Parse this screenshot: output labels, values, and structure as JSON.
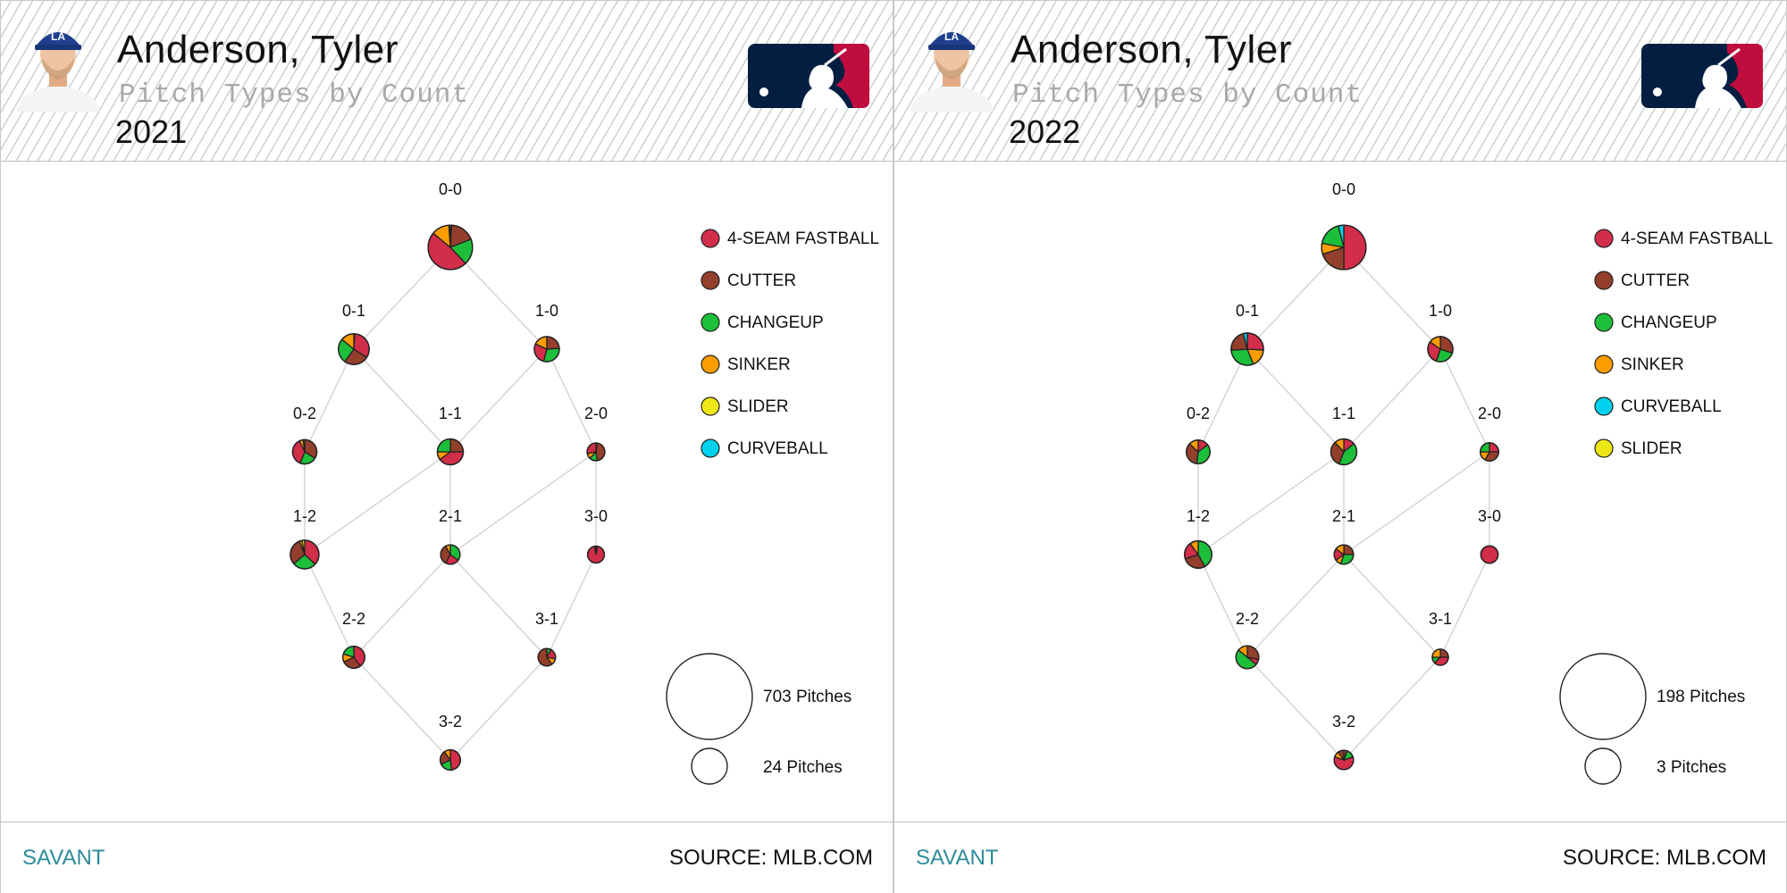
{
  "colors": {
    "4-SEAM FASTBALL": "#d22d49",
    "CUTTER": "#933f2c",
    "CHANGEUP": "#1dbe3a",
    "SINKER": "#fe9d00",
    "SLIDER": "#eee716",
    "CURVEBALL": "#00d1ed",
    "savant": "#2e8b9a",
    "mlb_navy": "#041e42",
    "mlb_red": "#bf0d3e"
  },
  "icons": {
    "avatar": "player-headshot-icon",
    "logo": "mlb-logo-icon"
  },
  "panels": [
    {
      "player_name": "Anderson, Tyler",
      "subtitle": "Pitch Types by Count",
      "year": "2021",
      "footer_left": "SAVANT",
      "footer_right": "SOURCE: MLB.COM",
      "size_legend": [
        {
          "label": "703 Pitches",
          "pitches": 703
        },
        {
          "label": "24 Pitches",
          "pitches": 24
        }
      ],
      "legend": [
        "4-SEAM FASTBALL",
        "CUTTER",
        "CHANGEUP",
        "SINKER",
        "SLIDER",
        "CURVEBALL"
      ]
    },
    {
      "player_name": "Anderson, Tyler",
      "subtitle": "Pitch Types by Count",
      "year": "2022",
      "footer_left": "SAVANT",
      "footer_right": "SOURCE: MLB.COM",
      "size_legend": [
        {
          "label": "198 Pitches",
          "pitches": 198
        },
        {
          "label": "3 Pitches",
          "pitches": 3
        }
      ],
      "legend": [
        "4-SEAM FASTBALL",
        "CUTTER",
        "CHANGEUP",
        "SINKER",
        "CURVEBALL",
        "SLIDER"
      ]
    }
  ],
  "chart_data": [
    {
      "type": "pie",
      "title": "Pitch Types by Count 2021",
      "counts": [
        {
          "count": "0-0",
          "pitches": 188,
          "slices": [
            [
              "SLIDER",
              0.01
            ],
            [
              "CUTTER",
              0.18
            ],
            [
              "CHANGEUP",
              0.19
            ],
            [
              "4-SEAM FASTBALL",
              0.48
            ],
            [
              "SINKER",
              0.13
            ],
            [
              "CURVEBALL",
              0.01
            ]
          ]
        },
        {
          "count": "0-1",
          "pitches": 90,
          "slices": [
            [
              "SLIDER",
              0.01
            ],
            [
              "4-SEAM FASTBALL",
              0.33
            ],
            [
              "CUTTER",
              0.26
            ],
            [
              "CHANGEUP",
              0.26
            ],
            [
              "SINKER",
              0.14
            ]
          ]
        },
        {
          "count": "1-0",
          "pitches": 60,
          "slices": [
            [
              "CUTTER",
              0.24
            ],
            [
              "CHANGEUP",
              0.3
            ],
            [
              "4-SEAM FASTBALL",
              0.28
            ],
            [
              "SINKER",
              0.18
            ]
          ]
        },
        {
          "count": "0-2",
          "pitches": 56,
          "slices": [
            [
              "CUTTER",
              0.34
            ],
            [
              "CHANGEUP",
              0.22
            ],
            [
              "4-SEAM FASTBALL",
              0.37
            ],
            [
              "SINKER",
              0.05
            ],
            [
              "SLIDER",
              0.02
            ]
          ]
        },
        {
          "count": "1-1",
          "pitches": 64,
          "slices": [
            [
              "CUTTER",
              0.25
            ],
            [
              "4-SEAM FASTBALL",
              0.4
            ],
            [
              "SINKER",
              0.1
            ],
            [
              "CHANGEUP",
              0.25
            ]
          ]
        },
        {
          "count": "2-0",
          "pitches": 30,
          "slices": [
            [
              "4-SEAM FASTBALL",
              0.02
            ],
            [
              "CUTTER",
              0.46
            ],
            [
              "CHANGEUP",
              0.14
            ],
            [
              "SINKER",
              0.1
            ],
            [
              "4-SEAM FASTBALL",
              0.28
            ]
          ]
        },
        {
          "count": "1-2",
          "pitches": 78,
          "slices": [
            [
              "4-SEAM FASTBALL",
              0.37
            ],
            [
              "CHANGEUP",
              0.27
            ],
            [
              "CUTTER",
              0.3
            ],
            [
              "SINKER",
              0.03
            ],
            [
              "SLIDER",
              0.03
            ]
          ]
        },
        {
          "count": "2-1",
          "pitches": 36,
          "slices": [
            [
              "CHANGEUP",
              0.35
            ],
            [
              "4-SEAM FASTBALL",
              0.23
            ],
            [
              "CUTTER",
              0.34
            ],
            [
              "SINKER",
              0.08
            ]
          ]
        },
        {
          "count": "3-0",
          "pitches": 27,
          "slices": [
            [
              "CUTTER",
              0.03
            ],
            [
              "4-SEAM FASTBALL",
              0.94
            ],
            [
              "SINKER",
              0.03
            ]
          ]
        },
        {
          "count": "2-2",
          "pitches": 46,
          "slices": [
            [
              "4-SEAM FASTBALL",
              0.4
            ],
            [
              "CUTTER",
              0.28
            ],
            [
              "SINKER",
              0.12
            ],
            [
              "CHANGEUP",
              0.2
            ]
          ]
        },
        {
          "count": "3-1",
          "pitches": 29,
          "slices": [
            [
              "CHANGEUP",
              0.08
            ],
            [
              "4-SEAM FASTBALL",
              0.2
            ],
            [
              "SINKER",
              0.12
            ],
            [
              "CUTTER",
              0.6
            ]
          ]
        },
        {
          "count": "3-2",
          "pitches": 39,
          "slices": [
            [
              "4-SEAM FASTBALL",
              0.48
            ],
            [
              "CHANGEUP",
              0.2
            ],
            [
              "CUTTER",
              0.22
            ],
            [
              "SINKER",
              0.1
            ]
          ]
        }
      ]
    },
    {
      "type": "pie",
      "title": "Pitch Types by Count 2022",
      "counts": [
        {
          "count": "0-0",
          "pitches": 53,
          "slices": [
            [
              "4-SEAM FASTBALL",
              0.5
            ],
            [
              "CUTTER",
              0.2
            ],
            [
              "SINKER",
              0.08
            ],
            [
              "CHANGEUP",
              0.18
            ],
            [
              "CURVEBALL",
              0.04
            ]
          ]
        },
        {
          "count": "0-1",
          "pitches": 28,
          "slices": [
            [
              "4-SEAM FASTBALL",
              0.26
            ],
            [
              "SINKER",
              0.18
            ],
            [
              "CHANGEUP",
              0.3
            ],
            [
              "CUTTER",
              0.22
            ],
            [
              "CURVEBALL",
              0.04
            ]
          ]
        },
        {
          "count": "1-0",
          "pitches": 17,
          "slices": [
            [
              "CUTTER",
              0.3
            ],
            [
              "CHANGEUP",
              0.25
            ],
            [
              "4-SEAM FASTBALL",
              0.3
            ],
            [
              "SINKER",
              0.15
            ]
          ]
        },
        {
          "count": "0-2",
          "pitches": 15,
          "slices": [
            [
              "4-SEAM FASTBALL",
              0.15
            ],
            [
              "CHANGEUP",
              0.37
            ],
            [
              "CUTTER",
              0.35
            ],
            [
              "SINKER",
              0.13
            ]
          ]
        },
        {
          "count": "1-1",
          "pitches": 18,
          "slices": [
            [
              "4-SEAM FASTBALL",
              0.14
            ],
            [
              "CHANGEUP",
              0.42
            ],
            [
              "CUTTER",
              0.32
            ],
            [
              "SINKER",
              0.12
            ]
          ]
        },
        {
          "count": "2-0",
          "pitches": 9,
          "slices": [
            [
              "4-SEAM FASTBALL",
              0.25
            ],
            [
              "CUTTER",
              0.33
            ],
            [
              "SINKER",
              0.17
            ],
            [
              "CHANGEUP",
              0.25
            ]
          ]
        },
        {
          "count": "1-2",
          "pitches": 20,
          "slices": [
            [
              "CHANGEUP",
              0.42
            ],
            [
              "CUTTER",
              0.28
            ],
            [
              "4-SEAM FASTBALL",
              0.2
            ],
            [
              "SINKER",
              0.1
            ]
          ]
        },
        {
          "count": "2-1",
          "pitches": 10,
          "slices": [
            [
              "CUTTER",
              0.25
            ],
            [
              "CHANGEUP",
              0.3
            ],
            [
              "SINKER",
              0.1
            ],
            [
              "4-SEAM FASTBALL",
              0.2
            ],
            [
              "SINKER",
              0.15
            ]
          ]
        },
        {
          "count": "3-0",
          "pitches": 8,
          "slices": [
            [
              "4-SEAM FASTBALL",
              1.0
            ]
          ]
        },
        {
          "count": "2-2",
          "pitches": 14,
          "slices": [
            [
              "CUTTER",
              0.28
            ],
            [
              "4-SEAM FASTBALL",
              0.08
            ],
            [
              "CHANGEUP",
              0.5
            ],
            [
              "SINKER",
              0.14
            ]
          ]
        },
        {
          "count": "3-1",
          "pitches": 7,
          "slices": [
            [
              "CUTTER",
              0.25
            ],
            [
              "4-SEAM FASTBALL",
              0.38
            ],
            [
              "CHANGEUP",
              0.12
            ],
            [
              "SINKER",
              0.25
            ]
          ]
        },
        {
          "count": "3-2",
          "pitches": 10,
          "slices": [
            [
              "CUTTER",
              0.06
            ],
            [
              "CHANGEUP",
              0.14
            ],
            [
              "4-SEAM FASTBALL",
              0.6
            ],
            [
              "SINKER",
              0.1
            ],
            [
              "CUTTER",
              0.1
            ]
          ]
        }
      ]
    }
  ]
}
